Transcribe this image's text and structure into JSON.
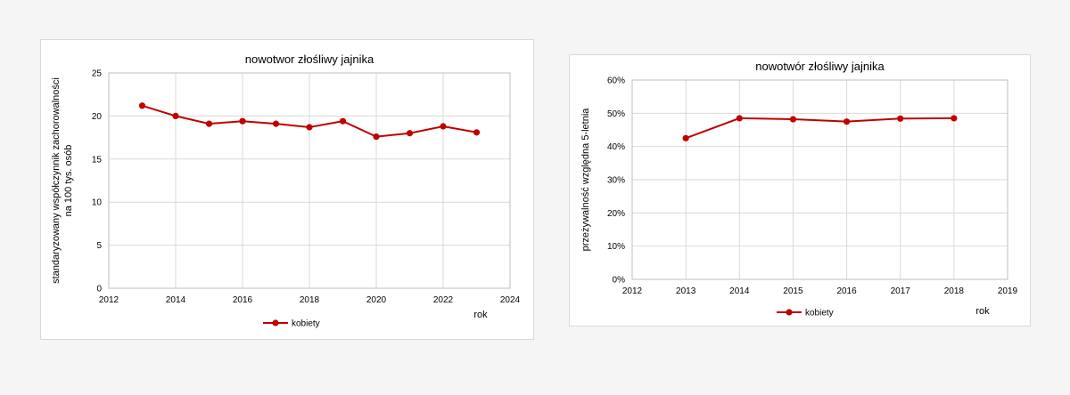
{
  "colors": {
    "series": "#c00000",
    "grid": "#d9d9d9",
    "axis": "#bfbfbf"
  },
  "chart_data": [
    {
      "type": "line",
      "title": "nowotwor złośliwy jajnika",
      "xlabel": "rok",
      "ylabel_lines": [
        "standaryzowany współczynnik zachorowalności",
        "na 100 tys. osób"
      ],
      "xlim": [
        2012,
        2024
      ],
      "ylim": [
        0,
        25
      ],
      "xticks": [
        2012,
        2014,
        2016,
        2018,
        2020,
        2022,
        2024
      ],
      "yticks": [
        0,
        5,
        10,
        15,
        20,
        25
      ],
      "ytick_labels": [
        "0",
        "5",
        "10",
        "15",
        "20",
        "25"
      ],
      "grid": true,
      "legend_position": "bottom",
      "series": [
        {
          "name": "kobiety",
          "x": [
            2013,
            2014,
            2015,
            2016,
            2017,
            2018,
            2019,
            2020,
            2021,
            2022,
            2023
          ],
          "values": [
            21.2,
            20.0,
            19.1,
            19.4,
            19.1,
            18.7,
            19.4,
            17.6,
            18.0,
            18.8,
            18.1
          ]
        }
      ]
    },
    {
      "type": "line",
      "title": "nowotwór złośliwy jajnika",
      "xlabel": "rok",
      "ylabel_lines": [
        "przeżywalność względna 5-letnia"
      ],
      "xlim": [
        2012,
        2019
      ],
      "ylim": [
        0,
        0.6
      ],
      "xticks": [
        2012,
        2013,
        2014,
        2015,
        2016,
        2017,
        2018,
        2019
      ],
      "yticks": [
        0,
        0.1,
        0.2,
        0.3,
        0.4,
        0.5,
        0.6
      ],
      "ytick_labels": [
        "0%",
        "10%",
        "20%",
        "30%",
        "40%",
        "50%",
        "60%"
      ],
      "grid": true,
      "legend_position": "bottom",
      "series": [
        {
          "name": "kobiety",
          "x": [
            2013,
            2014,
            2015,
            2016,
            2017,
            2018
          ],
          "values": [
            0.425,
            0.485,
            0.482,
            0.475,
            0.484,
            0.485
          ]
        }
      ]
    }
  ]
}
